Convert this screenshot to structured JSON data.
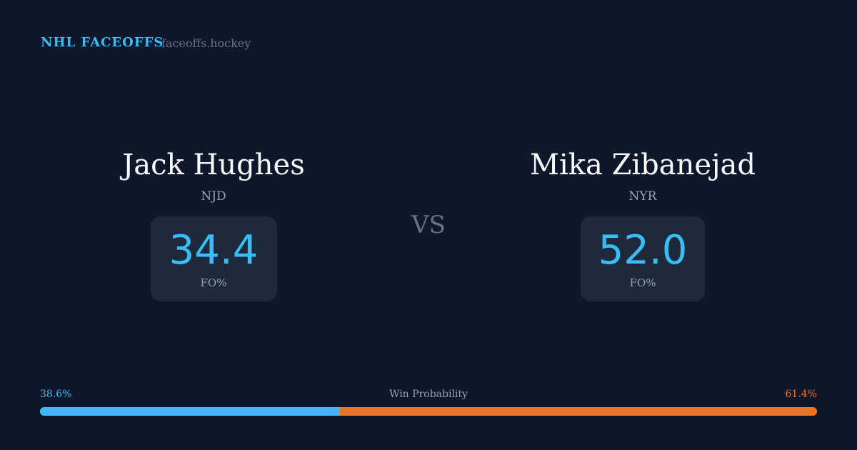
{
  "header": {
    "brand": "NHL FACEOFFS",
    "domain": "faceoffs.hockey"
  },
  "players": [
    {
      "name": "Jack Hughes",
      "team": "NJD",
      "fo_pct": "34.4",
      "fo_label": "FO%"
    },
    {
      "name": "Mika Zibanejad",
      "team": "NYR",
      "fo_pct": "52.0",
      "fo_label": "FO%"
    }
  ],
  "vs": "VS",
  "win_probability": {
    "label": "Win Probability",
    "left": "38.6%",
    "right": "61.4%",
    "left_value": 38.6,
    "right_value": 61.4,
    "left_color": "#38bdf8",
    "right_color": "#f97316"
  }
}
